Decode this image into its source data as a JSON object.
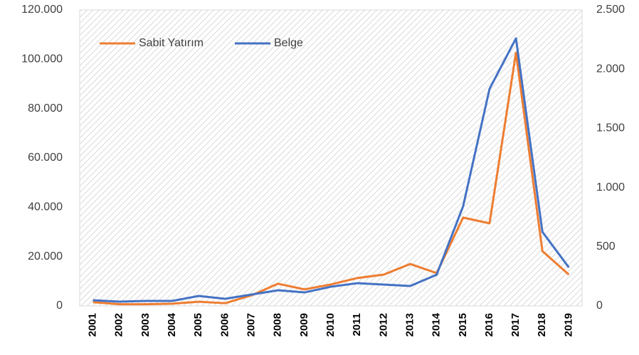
{
  "chart_data": {
    "type": "line",
    "categories": [
      "2001",
      "2002",
      "2003",
      "2004",
      "2005",
      "2006",
      "2007",
      "2008",
      "2009",
      "2010",
      "2011",
      "2012",
      "2013",
      "2014",
      "2015",
      "2016",
      "2017",
      "2018",
      "2019"
    ],
    "series": [
      {
        "name": "Sabit Yatırım",
        "color": "#ed7d31",
        "values": [
          1500,
          700,
          700,
          900,
          1700,
          1100,
          4300,
          9000,
          6700,
          8700,
          11300,
          12700,
          17000,
          13300,
          35800,
          33500,
          102700,
          22200,
          12700
        ]
      },
      {
        "name": "Belge",
        "color": "#4472c4",
        "axis": "y2",
        "values": [
          48,
          36,
          42,
          42,
          84,
          60,
          96,
          132,
          114,
          162,
          192,
          180,
          168,
          264,
          841,
          1833,
          2260,
          625,
          325
        ]
      }
    ],
    "ylim": [
      0,
      120000
    ],
    "yticks": [
      0,
      {
        "value": 20000,
        "label": "20.000"
      },
      {
        "value": 40000,
        "label": "40.000"
      },
      {
        "value": 60000,
        "label": "60.000"
      },
      {
        "value": 80000,
        "label": "80.000"
      },
      {
        "value": 100000,
        "label": "100.000"
      },
      {
        "value": 120000,
        "label": "120.000"
      }
    ],
    "y2lim": [
      0,
      2500
    ],
    "y2ticks": [
      0,
      500,
      {
        "value": 1000,
        "label": "1.000"
      },
      {
        "value": 1500,
        "label": "1.500"
      },
      {
        "value": 2000,
        "label": "2.000"
      },
      {
        "value": 2500,
        "label": "2.500"
      }
    ],
    "legend": "top-left"
  }
}
